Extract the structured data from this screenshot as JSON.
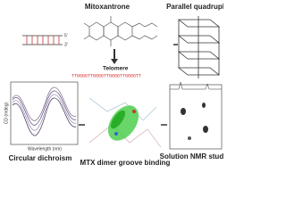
{
  "labels": {
    "mitoxantrone": "Mitoxantrone",
    "quadruplex": "Parallel quadruplex",
    "telomere": "Telomere",
    "five_prime": "5'",
    "three_prime": "3'",
    "sequence": "TTGGGGTTGGGGTTGGGGTTGGGGTT",
    "cd": "Circular dichroism",
    "cd_xlabel": "Wavelength (nm)",
    "cd_ylabel": "CD (mdeg)",
    "groove": "MTX dimer groove binding",
    "nmr": "Solution NMR studies"
  }
}
